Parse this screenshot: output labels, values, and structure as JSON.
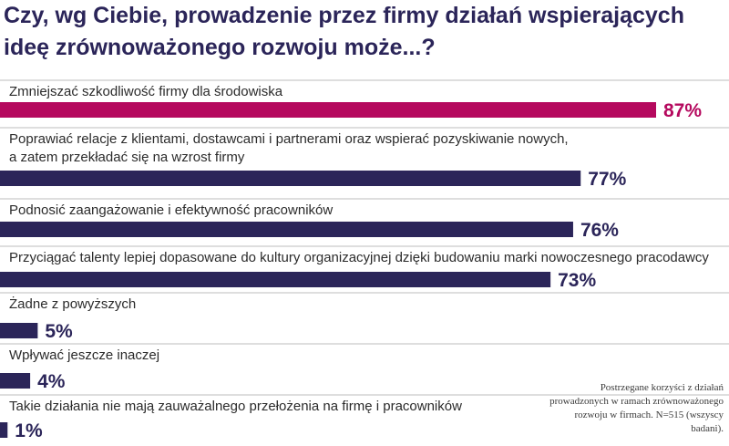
{
  "title": "Czy, wg Ciebie, prowadzenie przez firmy działań wspierających ideę zrównoważonego rozwoju może...?",
  "note": "Postrzegane korzyści z działań prowadzonych w ramach zrównoważonego rozwoju w firmach. N=515 (wszyscy badani).",
  "colors": {
    "highlight": "#b5095e",
    "bar": "#2b2559",
    "label": "#2b2b2b",
    "rule": "#bdbdbd"
  },
  "chart_data": {
    "type": "bar",
    "orientation": "horizontal",
    "unit": "%",
    "xlim": [
      0,
      100
    ],
    "categories": [
      "Zmniejszać szkodliwość firmy dla środowiska",
      "Poprawiać relacje z klientami, dostawcami i partnerami oraz wspierać pozyskiwanie nowych, a zatem przekładać się na wzrost firmy",
      "Podnosić zaangażowanie i efektywność pracowników",
      "Przyciągać talenty lepiej dopasowane do kultury organizacyjnej dzięki budowaniu marki nowoczesnego pracodawcy",
      "Żadne z powyższych",
      "Wpływać jeszcze inaczej",
      "Takie działania nie mają zauważalnego przełożenia na firmę i pracowników"
    ],
    "category_lines": [
      [
        "Zmniejszać szkodliwość firmy dla środowiska"
      ],
      [
        "Poprawiać relacje z klientami, dostawcami i partnerami oraz wspierać pozyskiwanie nowych,",
        "a zatem przekładać się na wzrost firmy"
      ],
      [
        "Podnosić zaangażowanie i efektywność pracowników"
      ],
      [
        "Przyciągać talenty lepiej dopasowane do kultury organizacyjnej dzięki budowaniu marki nowoczesnego pracodawcy"
      ],
      [
        "Żadne z powyższych"
      ],
      [
        "Wpływać jeszcze inaczej"
      ],
      [
        "Takie działania nie mają zauważalnego przełożenia na firmę i pracowników"
      ]
    ],
    "values": [
      87,
      77,
      76,
      73,
      5,
      4,
      1
    ],
    "value_labels": [
      "87%",
      "77%",
      "76%",
      "73%",
      "5%",
      "4%",
      "1%"
    ],
    "highlight_index": 0
  }
}
